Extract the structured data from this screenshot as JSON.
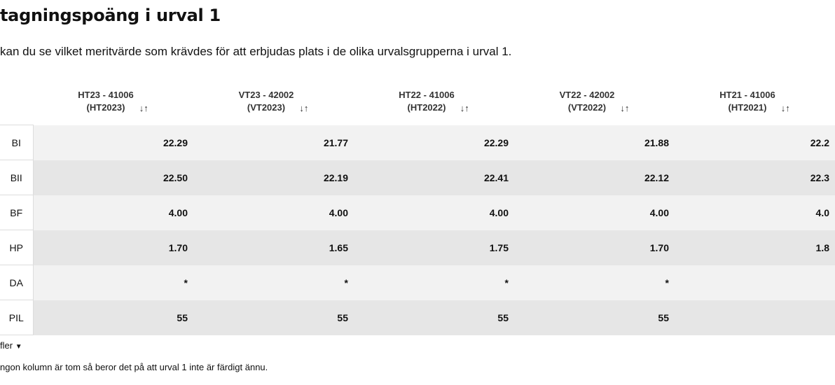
{
  "header": {
    "title": "tagningspoäng i urval 1",
    "subtitle": "kan du se vilket meritvärde som krävdes för att erbjudas plats i de olika urvalsgrupperna i urval 1."
  },
  "table": {
    "columns": [
      {
        "line1": "HT23 - 41006",
        "line2": "(HT2023)"
      },
      {
        "line1": "VT23 - 42002",
        "line2": "(VT2023)"
      },
      {
        "line1": "HT22 - 41006",
        "line2": "(HT2022)"
      },
      {
        "line1": "VT22 - 42002",
        "line2": "(VT2022)"
      },
      {
        "line1": "HT21 - 41006",
        "line2": "(HT2021)"
      }
    ],
    "rows": [
      {
        "label": "BI",
        "values": [
          "22.29",
          "21.77",
          "22.29",
          "21.88",
          "22.2"
        ]
      },
      {
        "label": "BII",
        "values": [
          "22.50",
          "22.19",
          "22.41",
          "22.12",
          "22.3"
        ]
      },
      {
        "label": "BF",
        "values": [
          "4.00",
          "4.00",
          "4.00",
          "4.00",
          "4.0"
        ]
      },
      {
        "label": "HP",
        "values": [
          "1.70",
          "1.65",
          "1.75",
          "1.70",
          "1.8"
        ]
      },
      {
        "label": "DA",
        "values": [
          "*",
          "*",
          "*",
          "*",
          null
        ]
      },
      {
        "label": "PIL",
        "values": [
          "55",
          "55",
          "55",
          "55",
          null
        ]
      }
    ]
  },
  "toggle": "fler",
  "footnote": "ngon kolumn är tom så beror det på att urval 1 inte är färdigt ännu."
}
